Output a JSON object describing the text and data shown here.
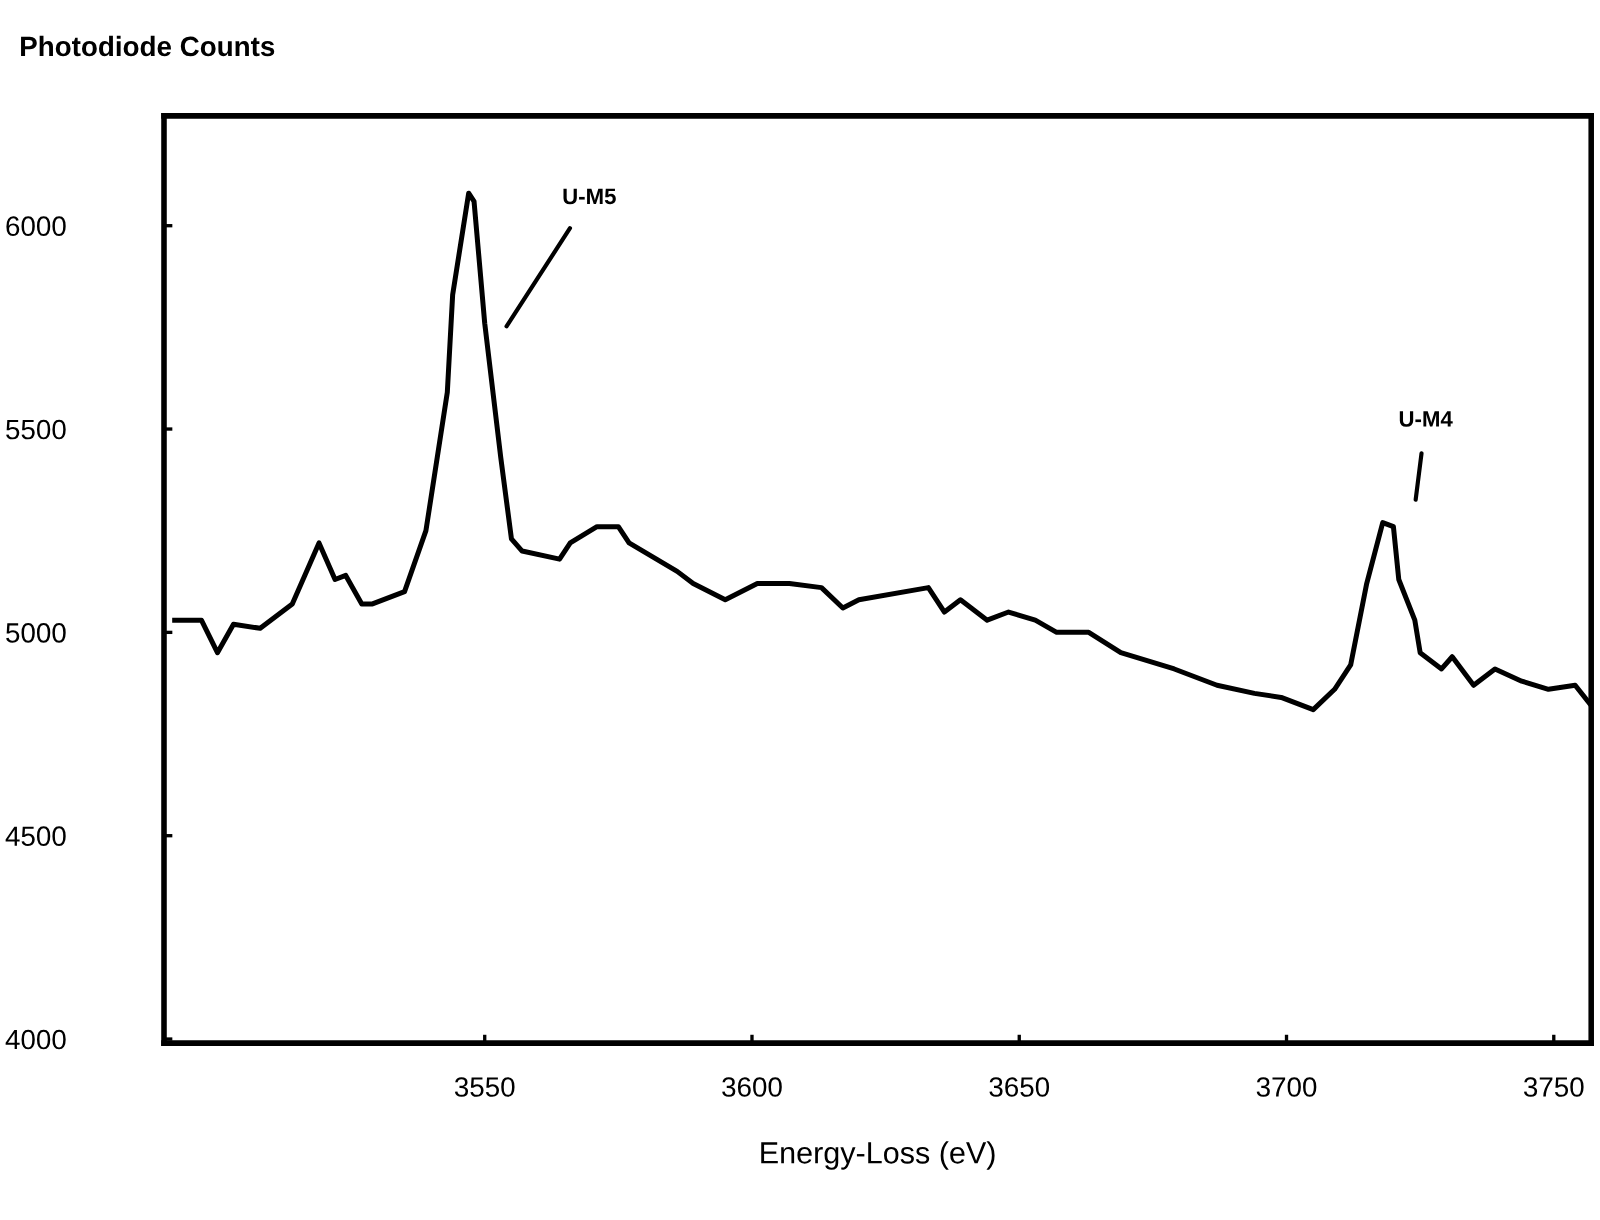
{
  "chart_data": {
    "type": "line",
    "ylabel": "Photodiode Counts",
    "xlabel": "Energy-Loss (eV)",
    "xlim": [
      3490,
      3757
    ],
    "ylim": [
      3990,
      6270
    ],
    "xticks": [
      3550,
      3600,
      3650,
      3700,
      3750
    ],
    "yticks": [
      4000,
      4500,
      5000,
      5500,
      6000
    ],
    "grid": false,
    "legend": false,
    "marker": "none",
    "line_style": "solid",
    "series": [
      {
        "color": "#000000",
        "x": [
          3492,
          3497,
          3500,
          3503,
          3508,
          3514,
          3519,
          3522,
          3524,
          3527,
          3529,
          3535,
          3539,
          3543,
          3544,
          3547,
          3548,
          3550,
          3553,
          3555,
          3557,
          3564,
          3566,
          3571,
          3575,
          3577,
          3586,
          3589,
          3595,
          3601,
          3607,
          3613,
          3617,
          3620,
          3633,
          3636,
          3639,
          3644,
          3648,
          3653,
          3657,
          3663,
          3669,
          3679,
          3687,
          3694,
          3699,
          3705,
          3709,
          3712,
          3715,
          3718,
          3720,
          3721,
          3724,
          3725,
          3729,
          3731,
          3735,
          3739,
          3744,
          3749,
          3754,
          3757
        ],
        "values": [
          5030,
          5030,
          4950,
          5020,
          5010,
          5070,
          5220,
          5130,
          5140,
          5070,
          5070,
          5100,
          5250,
          5590,
          5830,
          6080,
          6060,
          5760,
          5430,
          5230,
          5200,
          5180,
          5220,
          5260,
          5260,
          5220,
          5150,
          5120,
          5080,
          5120,
          5120,
          5110,
          5060,
          5080,
          5110,
          5050,
          5080,
          5030,
          5050,
          5030,
          5000,
          5000,
          4950,
          4910,
          4870,
          4850,
          4840,
          4810,
          4860,
          4920,
          5120,
          5270,
          5260,
          5130,
          5030,
          4950,
          4910,
          4940,
          4870,
          4910,
          4880,
          4860,
          4870,
          4820
        ]
      }
    ],
    "annotations": [
      "U-M5",
      "U-M4"
    ]
  }
}
